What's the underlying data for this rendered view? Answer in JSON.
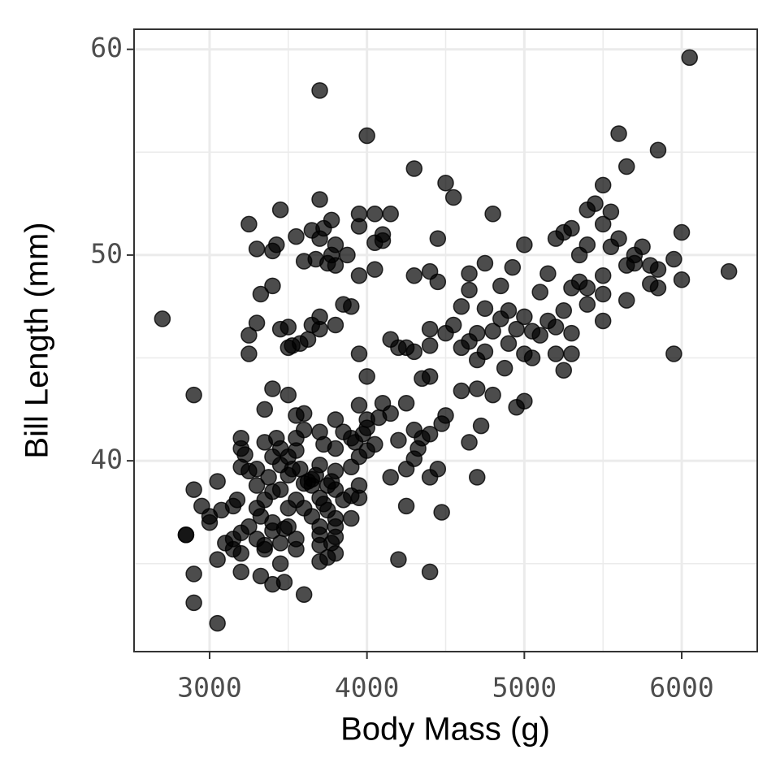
{
  "chart_data": {
    "type": "scatter",
    "x_label": "Body Mass (g)",
    "y_label": "Bill Length (mm)",
    "color": "#000000",
    "opacity": 0.7,
    "grid": true,
    "xlim": [
      2520,
      6480
    ],
    "ylim": [
      30.725,
      60.975
    ],
    "xticks": [
      3000,
      4000,
      5000,
      6000
    ],
    "yticks": [
      40,
      50,
      60
    ],
    "xminor": [
      3500,
      4500,
      5500
    ],
    "yminor": [
      35,
      45,
      55
    ],
    "x": [
      3050,
      2900,
      2900,
      2850,
      2900,
      2950,
      3000,
      3000,
      3050,
      3050,
      3075,
      3100,
      3150,
      3150,
      3150,
      3175,
      3200,
      3200,
      3200,
      3200,
      3200,
      3200,
      3225,
      3250,
      3250,
      3300,
      3300,
      3300,
      3300,
      3325,
      3325,
      3350,
      3350,
      3350,
      3350,
      3375,
      3400,
      3400,
      3400,
      3400,
      3400,
      3400,
      3425,
      3450,
      3450,
      3450,
      3450,
      3450,
      3475,
      3475,
      3500,
      3500,
      3500,
      3500,
      3500,
      3525,
      3550,
      3550,
      3550,
      3550,
      3550,
      3550,
      3575,
      3600,
      3600,
      3600,
      3600,
      3600,
      3625,
      3650,
      3650,
      3650,
      3675,
      3700,
      3700,
      3700,
      3700,
      3700,
      3700,
      3700,
      3725,
      3725,
      3750,
      3750,
      3750,
      3775,
      3775,
      3800,
      3800,
      3800,
      3800,
      3800,
      3800,
      3800,
      3800,
      3850,
      3850,
      3900,
      3900,
      3900,
      3900,
      3925,
      3950,
      3950,
      3950,
      3950,
      3975,
      4000,
      4000,
      4000,
      4000,
      4050,
      4075,
      4100,
      4150,
      4150,
      4200,
      4250,
      4250,
      4300,
      4300,
      4325,
      4350,
      4400,
      4400,
      4400,
      4450,
      4475,
      4500,
      4650,
      4700,
      4725,
      4200,
      4400,
      4475,
      4250,
      3350,
      2900,
      2850,
      2700,
      3250,
      3250,
      3250,
      3300,
      3300,
      3325,
      3400,
      3400,
      3425,
      3450,
      3450,
      3500,
      3500,
      3525,
      3550,
      3575,
      3600,
      3625,
      3650,
      3650,
      3675,
      3700,
      3700,
      3700,
      3700,
      3725,
      3750,
      3775,
      3775,
      3800,
      3800,
      3800,
      3850,
      3875,
      3900,
      3950,
      3950,
      3950,
      3950,
      4000,
      4050,
      4050,
      4050,
      4100,
      4100,
      4150,
      4150,
      4200,
      4250,
      3700,
      4300,
      4300,
      4300,
      4350,
      4400,
      4400,
      4400,
      4450,
      4450,
      4500,
      4500,
      4550,
      4550,
      4600,
      4600,
      4600,
      4650,
      4650,
      4650,
      4700,
      4700,
      4700,
      4750,
      4750,
      4750,
      4800,
      4800,
      4800,
      4850,
      4850,
      4875,
      4900,
      4900,
      4925,
      4950,
      4950,
      5000,
      5000,
      5000,
      5000,
      5050,
      5050,
      5100,
      5100,
      5150,
      5150,
      5200,
      5200,
      5200,
      5250,
      5250,
      5250,
      5300,
      5300,
      5300,
      5300,
      5350,
      5350,
      5400,
      5400,
      5400,
      5400,
      5450,
      5500,
      5500,
      5500,
      5500,
      5500,
      5550,
      5550,
      5600,
      5600,
      5650,
      5650,
      5650,
      5700,
      5700,
      5750,
      5800,
      5800,
      5850,
      5850,
      5850,
      5950,
      5950,
      6000,
      6000,
      6050,
      6300
    ],
    "values": [
      32.1,
      33.1,
      34.5,
      36.4,
      38.6,
      37.8,
      37.3,
      37.0,
      35.2,
      39.0,
      37.6,
      36.0,
      36.2,
      35.7,
      37.8,
      38.1,
      35.5,
      34.6,
      36.5,
      39.7,
      40.6,
      41.1,
      40.3,
      39.5,
      36.8,
      37.7,
      36.2,
      39.6,
      38.8,
      37.3,
      34.4,
      35.7,
      35.9,
      38.1,
      40.9,
      39.2,
      37.0,
      36.6,
      34.0,
      38.5,
      40.2,
      43.5,
      41.1,
      36.0,
      35.0,
      38.6,
      39.8,
      40.6,
      34.1,
      36.7,
      37.7,
      36.8,
      39.3,
      40.2,
      43.2,
      39.6,
      35.7,
      36.2,
      38.1,
      40.5,
      41.1,
      42.2,
      39.6,
      33.5,
      37.7,
      38.9,
      41.5,
      42.3,
      39.0,
      37.3,
      38.8,
      39.1,
      39.3,
      35.1,
      35.9,
      36.4,
      36.8,
      38.2,
      39.8,
      41.4,
      37.9,
      40.8,
      35.3,
      37.6,
      38.8,
      36.0,
      39.0,
      35.5,
      36.3,
      36.8,
      37.2,
      38.6,
      39.5,
      40.6,
      42.0,
      38.1,
      41.4,
      37.2,
      38.3,
      39.7,
      41.1,
      40.9,
      38.2,
      38.8,
      40.2,
      42.7,
      41.3,
      40.5,
      41.6,
      42.0,
      44.1,
      40.8,
      42.1,
      42.8,
      39.2,
      42.3,
      41.0,
      39.6,
      42.8,
      41.5,
      40.1,
      40.6,
      41.1,
      39.2,
      44.1,
      41.3,
      39.6,
      41.8,
      42.2,
      40.9,
      39.2,
      41.7,
      35.2,
      34.6,
      37.5,
      37.8,
      42.5,
      43.2,
      36.4,
      46.9,
      45.2,
      46.1,
      51.5,
      46.7,
      50.3,
      48.1,
      50.2,
      48.5,
      50.5,
      52.2,
      46.4,
      45.5,
      46.5,
      45.6,
      50.9,
      45.7,
      49.7,
      45.9,
      51.2,
      46.6,
      49.8,
      52.7,
      50.8,
      47.0,
      46.4,
      51.3,
      49.6,
      51.7,
      50.0,
      49.5,
      50.5,
      46.6,
      47.6,
      50.0,
      47.5,
      49.0,
      51.4,
      52.0,
      45.2,
      55.8,
      52.0,
      50.6,
      49.3,
      51.0,
      50.7,
      52.0,
      45.9,
      45.5,
      45.5,
      58.0,
      54.2,
      49.0,
      45.3,
      44.0,
      49.2,
      45.6,
      46.4,
      50.8,
      48.7,
      53.5,
      46.2,
      52.8,
      46.6,
      47.5,
      45.5,
      43.4,
      48.3,
      49.1,
      45.8,
      46.2,
      43.5,
      44.9,
      49.6,
      47.4,
      45.3,
      52.0,
      46.3,
      43.2,
      48.5,
      46.9,
      44.5,
      47.3,
      45.7,
      49.4,
      46.4,
      42.6,
      50.5,
      47.0,
      45.2,
      42.9,
      46.3,
      45.0,
      48.2,
      46.1,
      49.1,
      46.8,
      50.8,
      46.5,
      45.2,
      51.1,
      47.3,
      44.4,
      51.3,
      48.4,
      46.2,
      45.2,
      50.0,
      48.7,
      52.2,
      50.5,
      48.4,
      47.6,
      52.5,
      53.4,
      51.5,
      49.0,
      48.1,
      46.8,
      52.1,
      50.4,
      55.9,
      50.8,
      54.3,
      49.5,
      47.8,
      50.0,
      49.6,
      50.4,
      49.5,
      48.6,
      55.1,
      49.3,
      48.4,
      49.8,
      45.2,
      51.1,
      48.8,
      59.6,
      49.2
    ]
  }
}
